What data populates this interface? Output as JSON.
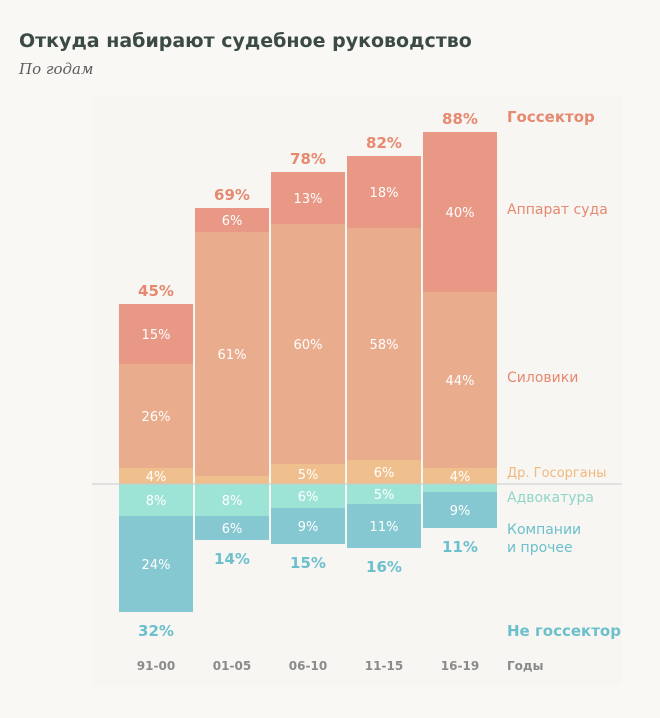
{
  "chart_data": {
    "type": "bar",
    "stacked": "diverging",
    "title": "Откуда набирают судебное руководство",
    "subtitle": "По годам",
    "xlabel": "Годы",
    "categories": [
      "91-00",
      "01-05",
      "06-10",
      "11-15",
      "16-19"
    ],
    "positive_label": "Госсектор",
    "negative_label": "Не госсектор",
    "positive_totals": [
      "45%",
      "69%",
      "78%",
      "82%",
      "88%"
    ],
    "negative_totals": [
      "32%",
      "14%",
      "15%",
      "16%",
      "11%"
    ],
    "series": [
      {
        "name": "Др. Госорганы",
        "side": "positive",
        "color": "#efc08e",
        "values": [
          4,
          2,
          5,
          6,
          4
        ],
        "labels": [
          "4%",
          "",
          "5%",
          "6%",
          "4%"
        ]
      },
      {
        "name": "Силовики",
        "side": "positive",
        "color": "#e9ad8e",
        "values": [
          26,
          61,
          60,
          58,
          44
        ],
        "labels": [
          "26%",
          "61%",
          "60%",
          "58%",
          "44%"
        ]
      },
      {
        "name": "Аппарат суда",
        "side": "positive",
        "color": "#e99885",
        "values": [
          15,
          6,
          13,
          18,
          40
        ],
        "labels": [
          "15%",
          "6%",
          "13%",
          "18%",
          "40%"
        ]
      },
      {
        "name": "Адвокатура",
        "side": "negative",
        "color": "#9ee4d6",
        "values": [
          8,
          8,
          6,
          5,
          2
        ],
        "labels": [
          "8%",
          "8%",
          "6%",
          "5%",
          ""
        ]
      },
      {
        "name": "Компании и прочее",
        "side": "negative",
        "color": "#86c8d2",
        "values": [
          24,
          6,
          9,
          11,
          9
        ],
        "labels": [
          "24%",
          "6%",
          "9%",
          "11%",
          "9%"
        ]
      }
    ],
    "colors": {
      "positive_text": "#e68970",
      "negative_text": "#6cc0cc",
      "other_text": "#f0b97e",
      "axis_text": "#8a8a8a",
      "baseline": "#c9c9c9"
    }
  }
}
